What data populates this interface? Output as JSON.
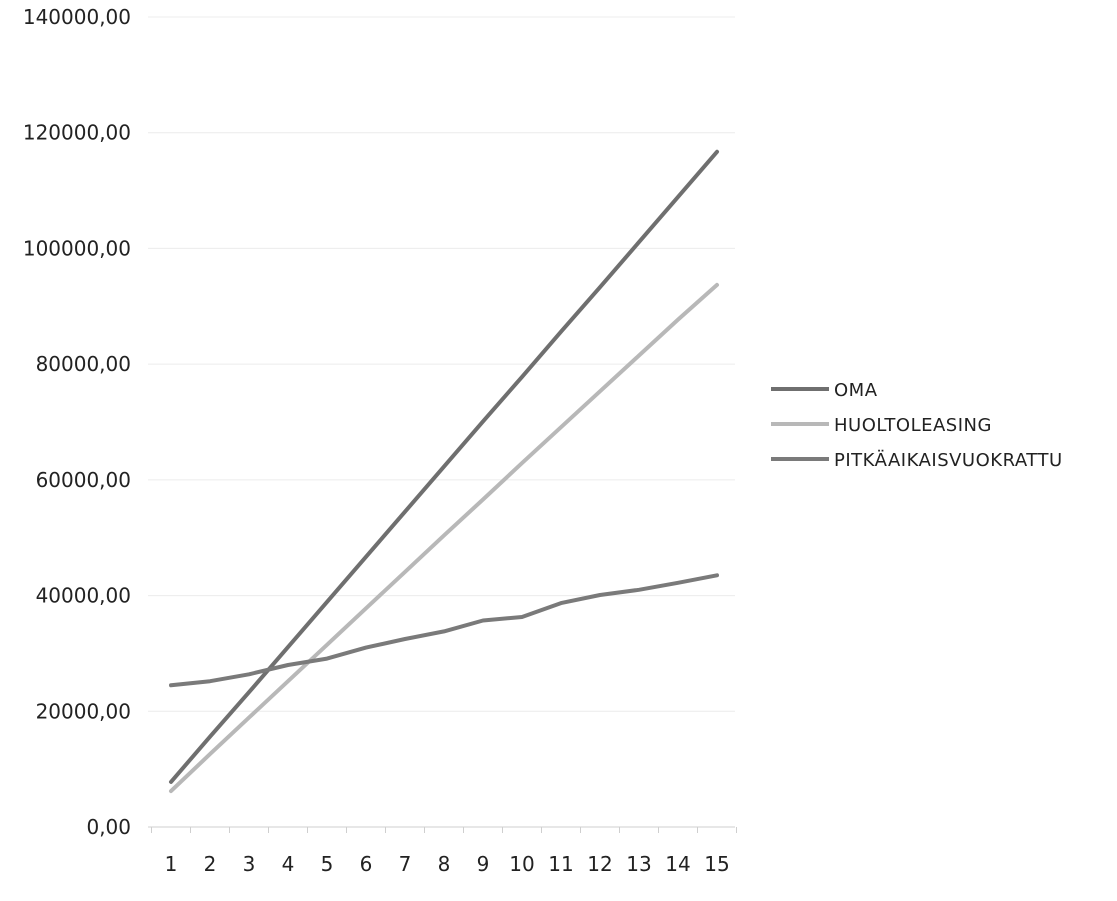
{
  "chart_data": {
    "type": "line",
    "title": "",
    "xlabel": "",
    "ylabel": "",
    "x": [
      1,
      2,
      3,
      4,
      5,
      6,
      7,
      8,
      9,
      10,
      11,
      12,
      13,
      14,
      15
    ],
    "x_tick_labels": [
      "1",
      "2",
      "3",
      "4",
      "5",
      "6",
      "7",
      "8",
      "9",
      "10",
      "11",
      "12",
      "13",
      "14",
      "15"
    ],
    "ylim": [
      0,
      140000
    ],
    "y_ticks": [
      0,
      20000,
      40000,
      60000,
      80000,
      100000,
      120000,
      140000
    ],
    "y_tick_labels": [
      "0,00",
      "20000,00",
      "40000,00",
      "60000,00",
      "80000,00",
      "100000,00",
      "120000,00",
      "140000,00"
    ],
    "grid": true,
    "legend_position": "right",
    "series": [
      {
        "name": "OMA",
        "color": "#6f6f6f",
        "values": [
          7800,
          15600,
          23300,
          31100,
          38900,
          46700,
          54500,
          62300,
          70100,
          77800,
          85600,
          93300,
          101100,
          108900,
          116700
        ]
      },
      {
        "name": "HUOLTOLEASING",
        "color": "#b8b8b8",
        "values": [
          6200,
          12600,
          18900,
          25200,
          31500,
          37800,
          44100,
          50400,
          56600,
          62900,
          69100,
          75300,
          81500,
          87700,
          93700
        ]
      },
      {
        "name": "PITKÄAIKAISVUOKRATTU",
        "color": "#7a7a7a",
        "values": [
          24500,
          25200,
          26400,
          28000,
          29100,
          31000,
          32500,
          33800,
          35700,
          36300,
          38700,
          40100,
          41000,
          42200,
          43500
        ]
      }
    ]
  }
}
